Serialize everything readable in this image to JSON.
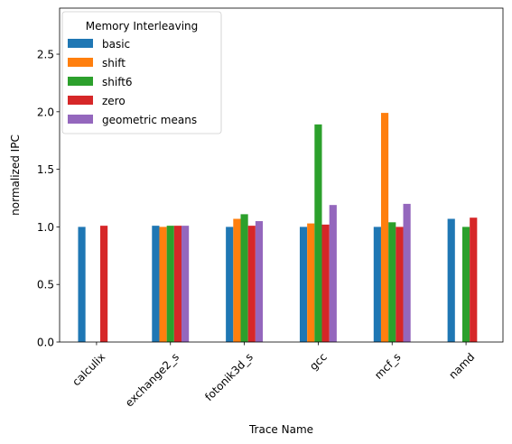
{
  "chart_data": {
    "type": "bar",
    "xlabel": "Trace Name",
    "ylabel": "normalized IPC",
    "ylim": [
      0,
      2.9
    ],
    "yticks": [
      0.0,
      0.5,
      1.0,
      1.5,
      2.0,
      2.5
    ],
    "ytick_labels": [
      "0.0",
      "0.5",
      "1.0",
      "1.5",
      "2.0",
      "2.5"
    ],
    "categories": [
      "calculix",
      "exchange2_s",
      "fotonik3d_s",
      "gcc",
      "mcf_s",
      "namd"
    ],
    "legend": {
      "title": "Memory Interleaving",
      "position": "upper-left"
    },
    "grid": false,
    "series": [
      {
        "name": "basic",
        "color": "#1f77b4",
        "values": [
          1.0,
          1.01,
          1.0,
          1.0,
          1.0,
          1.07
        ]
      },
      {
        "name": "shift",
        "color": "#ff7f0e",
        "values": [
          null,
          1.0,
          1.07,
          1.03,
          1.99,
          null
        ]
      },
      {
        "name": "shift6",
        "color": "#2ca02c",
        "values": [
          null,
          1.01,
          1.11,
          1.89,
          1.04,
          1.0
        ]
      },
      {
        "name": "zero",
        "color": "#d62728",
        "values": [
          1.01,
          1.01,
          1.01,
          1.02,
          1.0,
          1.08
        ]
      },
      {
        "name": "geometric means",
        "color": "#9467bd",
        "values": [
          null,
          1.01,
          1.05,
          1.19,
          1.2,
          null
        ]
      }
    ]
  }
}
